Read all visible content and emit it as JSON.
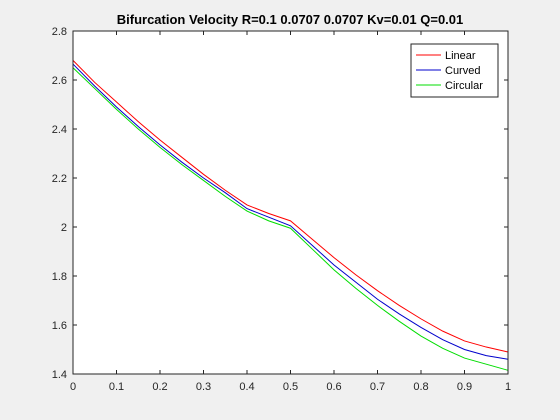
{
  "chart_data": {
    "type": "line",
    "title": "Bifurcation Velocity R=0.1 0.0707 0.0707 Kv=0.01 Q=0.01",
    "xlabel": "",
    "ylabel": "",
    "xlim": [
      0,
      1
    ],
    "ylim": [
      1.4,
      2.8
    ],
    "xticks": [
      "0",
      "0.1",
      "0.2",
      "0.3",
      "0.4",
      "0.5",
      "0.6",
      "0.7",
      "0.8",
      "0.9",
      "1"
    ],
    "yticks": [
      "1.4",
      "1.6",
      "1.8",
      "2",
      "2.2",
      "2.4",
      "2.6",
      "2.8"
    ],
    "grid": false,
    "legend_position": "top-right",
    "x": [
      0,
      0.05,
      0.1,
      0.15,
      0.2,
      0.25,
      0.3,
      0.35,
      0.4,
      0.45,
      0.5,
      0.55,
      0.6,
      0.65,
      0.7,
      0.75,
      0.8,
      0.85,
      0.9,
      0.95,
      1.0
    ],
    "series": [
      {
        "name": "Linear",
        "color": "#ff0000",
        "values": [
          2.68,
          2.59,
          2.51,
          2.43,
          2.355,
          2.285,
          2.215,
          2.15,
          2.09,
          2.055,
          2.025,
          1.95,
          1.875,
          1.805,
          1.74,
          1.68,
          1.625,
          1.575,
          1.535,
          1.51,
          1.49
        ]
      },
      {
        "name": "Curved",
        "color": "#0000cc",
        "values": [
          2.665,
          2.575,
          2.49,
          2.41,
          2.335,
          2.265,
          2.2,
          2.14,
          2.075,
          2.04,
          2.005,
          1.925,
          1.845,
          1.775,
          1.705,
          1.645,
          1.59,
          1.54,
          1.5,
          1.475,
          1.46
        ]
      },
      {
        "name": "Circular",
        "color": "#00dd00",
        "values": [
          2.65,
          2.565,
          2.48,
          2.4,
          2.325,
          2.255,
          2.19,
          2.125,
          2.065,
          2.025,
          1.995,
          1.91,
          1.825,
          1.75,
          1.68,
          1.615,
          1.555,
          1.505,
          1.465,
          1.44,
          1.415
        ]
      }
    ]
  }
}
